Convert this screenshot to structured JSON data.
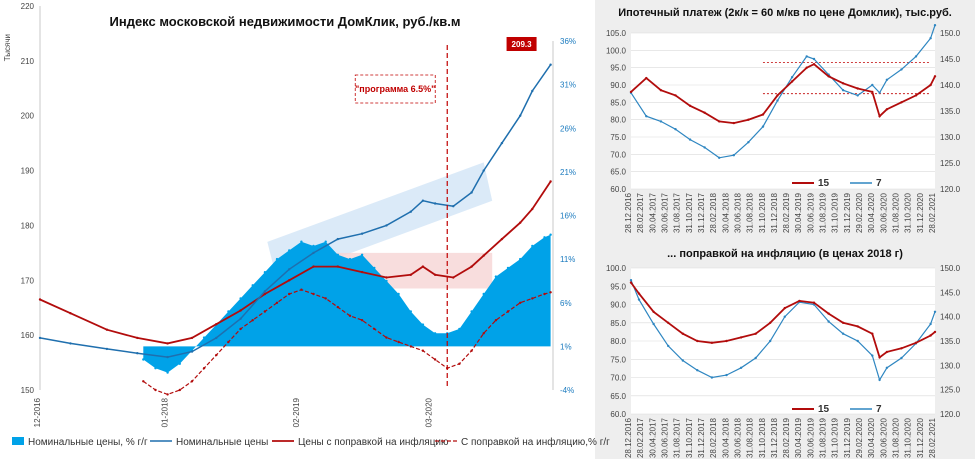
{
  "colors": {
    "area": "#00a2e8",
    "nominal": "#1f6fae",
    "real": "#b20c0c",
    "band_blue": "#cfe3f5",
    "band_red": "#f6d5d5",
    "right_blue": "#2e86c1",
    "ann_red": "#c00000",
    "right_bg": "#eeeeee",
    "grid": "#d9d9d9"
  },
  "chart_data": [
    {
      "type": "area",
      "title": "Индекс московской недвижимости ДомКлик, руб./кв.м",
      "ylabel": "Тысячи",
      "ylim": [
        150,
        220
      ],
      "y_ticks": [
        "150",
        "160",
        "170",
        "180",
        "190",
        "200",
        "210",
        "220"
      ],
      "y2lim": [
        -4,
        36
      ],
      "y2_ticks": [
        "-4%",
        "1%",
        "6%",
        "11%",
        "16%",
        "21%",
        "26%",
        "31%",
        "36%"
      ],
      "x_ticks": [
        "12-2016",
        "01-2018",
        "02-2019",
        "03-2020"
      ],
      "annotation_label": "\"программа 6.5%\"",
      "end_value_label": "209.3",
      "legend": [
        "Номинальные цены, % г/г",
        "Номинальные цены",
        "Цены с поправкой на инфляцию",
        "С поправкой на инфляцию,% г/г"
      ],
      "series": [
        {
          "name": "Номинальные цены",
          "x": [
            2016.95,
            2017.2,
            2017.5,
            2017.75,
            2018.0,
            2018.2,
            2018.4,
            2018.6,
            2018.8,
            2019.0,
            2019.2,
            2019.4,
            2019.6,
            2019.8,
            2020.0,
            2020.1,
            2020.2,
            2020.35,
            2020.5,
            2020.6,
            2020.75,
            2020.9,
            2021.0,
            2021.15
          ],
          "values": [
            159.5,
            158.5,
            157.5,
            156.7,
            156.0,
            157.0,
            159.5,
            163.0,
            168.0,
            172.0,
            175.0,
            177.5,
            178.5,
            180.0,
            182.5,
            184.5,
            184.0,
            183.5,
            186.0,
            190.0,
            195.0,
            200.0,
            204.5,
            209.3
          ]
        },
        {
          "name": "Цены с поправкой на инфляцию",
          "x": [
            2016.95,
            2017.2,
            2017.5,
            2017.75,
            2018.0,
            2018.2,
            2018.4,
            2018.6,
            2018.8,
            2019.0,
            2019.2,
            2019.4,
            2019.6,
            2019.8,
            2020.0,
            2020.1,
            2020.2,
            2020.35,
            2020.5,
            2020.6,
            2020.75,
            2020.9,
            2021.0,
            2021.15
          ],
          "values": [
            166.5,
            164.0,
            161.0,
            159.5,
            158.5,
            159.5,
            162.0,
            164.5,
            167.5,
            170.0,
            172.5,
            172.5,
            171.5,
            170.5,
            171.0,
            172.5,
            171.0,
            170.5,
            172.5,
            174.5,
            177.5,
            180.5,
            183.0,
            188.0
          ]
        },
        {
          "name": "Номинальные цены, % г/г",
          "axis": "right",
          "x": [
            2017.8,
            2017.9,
            2018.0,
            2018.1,
            2018.2,
            2018.3,
            2018.4,
            2018.5,
            2018.6,
            2018.7,
            2018.8,
            2018.9,
            2019.0,
            2019.1,
            2019.2,
            2019.3,
            2019.4,
            2019.5,
            2019.6,
            2019.7,
            2019.8,
            2019.9,
            2020.0,
            2020.1,
            2020.2,
            2020.3,
            2020.4,
            2020.5,
            2020.6,
            2020.7,
            2020.8,
            2020.9,
            2021.0,
            2021.1,
            2021.15
          ],
          "values": [
            -0.5,
            -1.5,
            -2.0,
            -1.0,
            0.5,
            2.0,
            3.5,
            5.0,
            6.5,
            8.0,
            9.5,
            11.0,
            12.0,
            13.0,
            12.5,
            13.0,
            11.5,
            11.0,
            11.5,
            10.0,
            8.5,
            7.0,
            5.0,
            3.5,
            2.5,
            2.5,
            3.0,
            5.0,
            7.0,
            9.0,
            10.0,
            11.0,
            12.5,
            13.5,
            13.8
          ]
        },
        {
          "name": "С поправкой на инфляцию,% г/г",
          "axis": "right",
          "x": [
            2017.8,
            2017.9,
            2018.0,
            2018.1,
            2018.2,
            2018.3,
            2018.4,
            2018.5,
            2018.6,
            2018.7,
            2018.8,
            2018.9,
            2019.0,
            2019.1,
            2019.2,
            2019.3,
            2019.4,
            2019.5,
            2019.6,
            2019.7,
            2019.8,
            2019.9,
            2020.0,
            2020.1,
            2020.2,
            2020.3,
            2020.4,
            2020.5,
            2020.6,
            2020.7,
            2020.8,
            2020.9,
            2021.0,
            2021.1,
            2021.15
          ],
          "values": [
            -3.0,
            -4.0,
            -4.5,
            -4.0,
            -3.0,
            -1.5,
            0.0,
            1.5,
            3.0,
            4.0,
            5.0,
            6.0,
            7.0,
            7.5,
            7.0,
            6.5,
            5.5,
            4.5,
            4.0,
            3.0,
            2.0,
            1.5,
            1.0,
            0.5,
            -0.5,
            -1.5,
            -1.0,
            0.5,
            2.5,
            4.0,
            5.0,
            6.0,
            6.5,
            7.0,
            7.2
          ]
        }
      ]
    },
    {
      "type": "line",
      "title": "Ипотечный платеж (2к/к = 60 м/кв по цене Домклик), тыс.руб.",
      "ylim": [
        60,
        105
      ],
      "y_ticks": [
        "60.0",
        "65.0",
        "70.0",
        "75.0",
        "80.0",
        "85.0",
        "90.0",
        "95.0",
        "100.0",
        "105.0"
      ],
      "y2lim": [
        120,
        150
      ],
      "y2_ticks": [
        "120.0",
        "125.0",
        "130.0",
        "135.0",
        "140.0",
        "145.0",
        "150.0"
      ],
      "x_ticks": [
        "28.12.2016",
        "28.02.2017",
        "30.04.2017",
        "30.06.2017",
        "31.08.2017",
        "31.10.2017",
        "31.12.2017",
        "28.02.2018",
        "30.04.2018",
        "30.06.2018",
        "31.08.2018",
        "31.10.2018",
        "31.12.2018",
        "28.02.2019",
        "30.04.2019",
        "30.06.2019",
        "31.08.2019",
        "31.10.2019",
        "31.12.2019",
        "29.02.2020",
        "30.04.2020",
        "30.06.2020",
        "31.08.2020",
        "31.10.2020",
        "31.12.2020",
        "28.02.2021"
      ],
      "legend": [
        "15",
        "7"
      ],
      "series": [
        {
          "name": "15",
          "x": [
            2016.99,
            2017.2,
            2017.4,
            2017.6,
            2017.8,
            2018.0,
            2018.2,
            2018.4,
            2018.6,
            2018.8,
            2019.0,
            2019.2,
            2019.4,
            2019.5,
            2019.7,
            2019.9,
            2020.1,
            2020.3,
            2020.4,
            2020.5,
            2020.7,
            2020.9,
            2021.1,
            2021.16
          ],
          "values": [
            88.0,
            92.0,
            88.5,
            87.0,
            84.0,
            82.0,
            79.5,
            79.0,
            80.0,
            81.5,
            87.0,
            91.0,
            95.0,
            96.0,
            92.5,
            90.5,
            89.0,
            88.0,
            81.0,
            83.0,
            85.0,
            87.0,
            90.0,
            92.5
          ]
        },
        {
          "name": "7",
          "axis": "right",
          "x": [
            2016.99,
            2017.2,
            2017.4,
            2017.6,
            2017.8,
            2018.0,
            2018.2,
            2018.4,
            2018.6,
            2018.8,
            2019.0,
            2019.2,
            2019.4,
            2019.5,
            2019.7,
            2019.9,
            2020.1,
            2020.3,
            2020.4,
            2020.5,
            2020.7,
            2020.9,
            2021.1,
            2021.16
          ],
          "values": [
            138.5,
            134.0,
            133.0,
            131.5,
            129.5,
            128.0,
            126.0,
            126.5,
            129.0,
            132.0,
            137.0,
            141.5,
            145.5,
            145.0,
            142.0,
            139.0,
            138.0,
            140.0,
            138.5,
            141.0,
            143.0,
            145.5,
            149.0,
            151.5
          ]
        }
      ]
    },
    {
      "type": "line",
      "title": "... поправкой на инфляцию (в ценах 2018 г)",
      "ylim": [
        60,
        100
      ],
      "y_ticks": [
        "60.0",
        "65.0",
        "70.0",
        "75.0",
        "80.0",
        "85.0",
        "90.0",
        "95.0",
        "100.0"
      ],
      "y2lim": [
        120,
        150
      ],
      "y2_ticks": [
        "120.0",
        "125.0",
        "130.0",
        "135.0",
        "140.0",
        "145.0",
        "150.0"
      ],
      "x_ticks": [
        "28.12.2016",
        "28.02.2017",
        "30.04.2017",
        "30.06.2017",
        "31.08.2017",
        "31.10.2017",
        "31.12.2017",
        "28.02.2018",
        "30.04.2018",
        "30.06.2018",
        "31.08.2018",
        "31.10.2018",
        "31.12.2018",
        "28.02.2019",
        "30.04.2019",
        "30.06.2019",
        "31.08.2019",
        "31.10.2019",
        "31.12.2019",
        "29.02.2020",
        "30.04.2020",
        "30.06.2020",
        "31.08.2020",
        "31.10.2020",
        "31.12.2020",
        "28.02.2021"
      ],
      "legend": [
        "15",
        "7"
      ],
      "series": [
        {
          "name": "15",
          "x": [
            2016.99,
            2017.1,
            2017.3,
            2017.5,
            2017.7,
            2017.9,
            2018.1,
            2018.3,
            2018.5,
            2018.7,
            2018.9,
            2019.1,
            2019.3,
            2019.5,
            2019.7,
            2019.9,
            2020.1,
            2020.3,
            2020.4,
            2020.5,
            2020.7,
            2020.9,
            2021.1,
            2021.16
          ],
          "values": [
            96.0,
            93.0,
            88.0,
            85.0,
            82.0,
            80.0,
            79.5,
            80.0,
            81.0,
            82.0,
            85.0,
            89.0,
            91.0,
            90.5,
            87.5,
            85.0,
            84.0,
            82.0,
            75.5,
            77.0,
            78.0,
            79.5,
            81.5,
            82.5
          ]
        },
        {
          "name": "7",
          "axis": "right",
          "x": [
            2016.99,
            2017.1,
            2017.3,
            2017.5,
            2017.7,
            2017.9,
            2018.1,
            2018.3,
            2018.5,
            2018.7,
            2018.9,
            2019.1,
            2019.3,
            2019.5,
            2019.7,
            2019.9,
            2020.1,
            2020.3,
            2020.4,
            2020.5,
            2020.7,
            2020.9,
            2021.1,
            2021.16
          ],
          "values": [
            147.5,
            143.5,
            138.5,
            134.0,
            131.0,
            129.0,
            127.5,
            128.0,
            129.5,
            131.5,
            135.0,
            140.0,
            143.0,
            142.5,
            139.0,
            136.5,
            135.0,
            132.0,
            127.0,
            129.5,
            131.5,
            134.5,
            138.5,
            141.0
          ]
        }
      ]
    }
  ]
}
